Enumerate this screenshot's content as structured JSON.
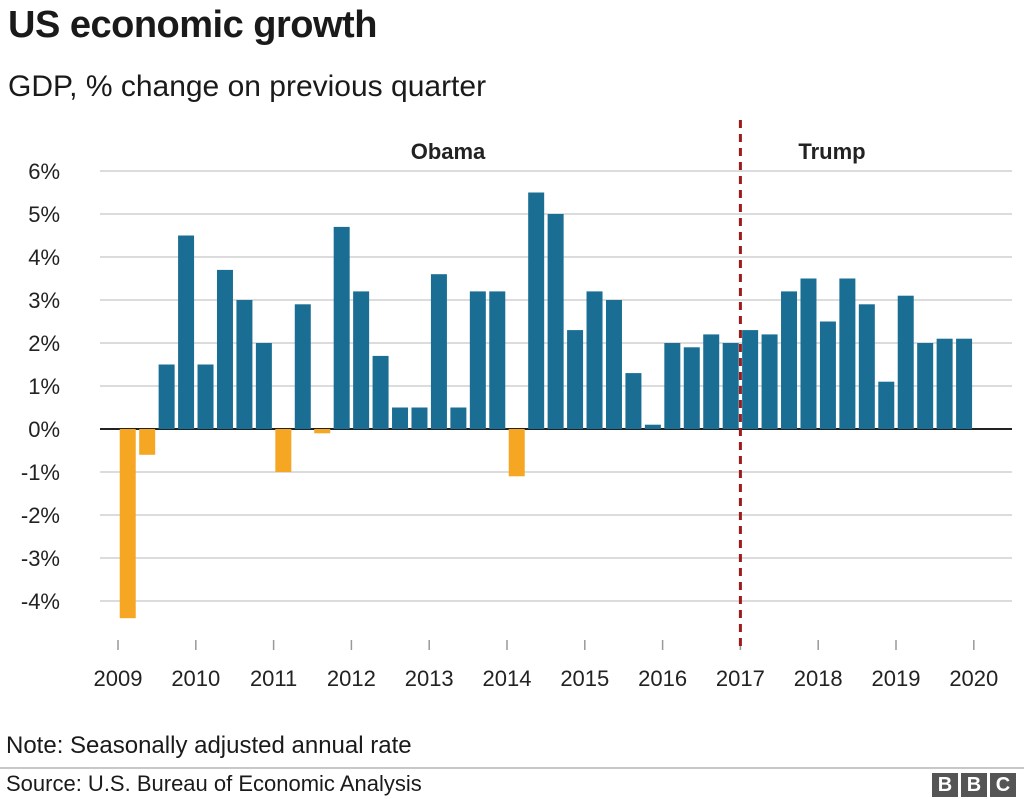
{
  "title": "US economic growth",
  "subtitle": "GDP, % change on previous quarter",
  "note": "Note: Seasonally adjusted annual rate",
  "source": "Source: U.S. Bureau of Economic Analysis",
  "logo": [
    "B",
    "B",
    "C"
  ],
  "colors": {
    "positive": "#1a6e94",
    "negative": "#f5a623",
    "divider": "#9b1c1c",
    "grid": "#d0d0d0",
    "zero": "#222222"
  },
  "chart_data": {
    "type": "bar",
    "title": "US economic growth",
    "subtitle": "GDP, % change on previous quarter",
    "x_ticks": [
      "2009",
      "2010",
      "2011",
      "2012",
      "2013",
      "2014",
      "2015",
      "2016",
      "2017",
      "2018",
      "2019",
      "2020"
    ],
    "y_ticks": [
      "6%",
      "5%",
      "4%",
      "3%",
      "2%",
      "1%",
      "0%",
      "-1%",
      "-2%",
      "-3%",
      "-4%"
    ],
    "ylim": [
      -5,
      6
    ],
    "grid": true,
    "start": "2009 Q1",
    "categories": [
      "2009 Q1",
      "2009 Q2",
      "2009 Q3",
      "2009 Q4",
      "2010 Q1",
      "2010 Q2",
      "2010 Q3",
      "2010 Q4",
      "2011 Q1",
      "2011 Q2",
      "2011 Q3",
      "2011 Q4",
      "2012 Q1",
      "2012 Q2",
      "2012 Q3",
      "2012 Q4",
      "2013 Q1",
      "2013 Q2",
      "2013 Q3",
      "2013 Q4",
      "2014 Q1",
      "2014 Q2",
      "2014 Q3",
      "2014 Q4",
      "2015 Q1",
      "2015 Q2",
      "2015 Q3",
      "2015 Q4",
      "2016 Q1",
      "2016 Q2",
      "2016 Q3",
      "2016 Q4",
      "2017 Q1",
      "2017 Q2",
      "2017 Q3",
      "2017 Q4",
      "2018 Q1",
      "2018 Q2",
      "2018 Q3",
      "2018 Q4",
      "2019 Q1",
      "2019 Q2",
      "2019 Q3",
      "2019 Q4"
    ],
    "values": [
      -4.4,
      -0.6,
      1.5,
      4.5,
      1.5,
      3.7,
      3.0,
      2.0,
      -1.0,
      2.9,
      -0.1,
      4.7,
      3.2,
      1.7,
      0.5,
      0.5,
      3.6,
      0.5,
      3.2,
      3.2,
      -1.1,
      5.5,
      5.0,
      2.3,
      3.2,
      3.0,
      1.3,
      0.1,
      2.0,
      1.9,
      2.2,
      2.0,
      2.3,
      2.2,
      3.2,
      3.5,
      2.5,
      3.5,
      2.9,
      1.1,
      3.1,
      2.0,
      2.1,
      2.1
    ],
    "annotations": [
      {
        "label": "Obama",
        "period": "2009 Q1 – 2016 Q4"
      },
      {
        "label": "Trump",
        "period": "2017 Q1 onward"
      }
    ],
    "divider_at": "2017"
  }
}
